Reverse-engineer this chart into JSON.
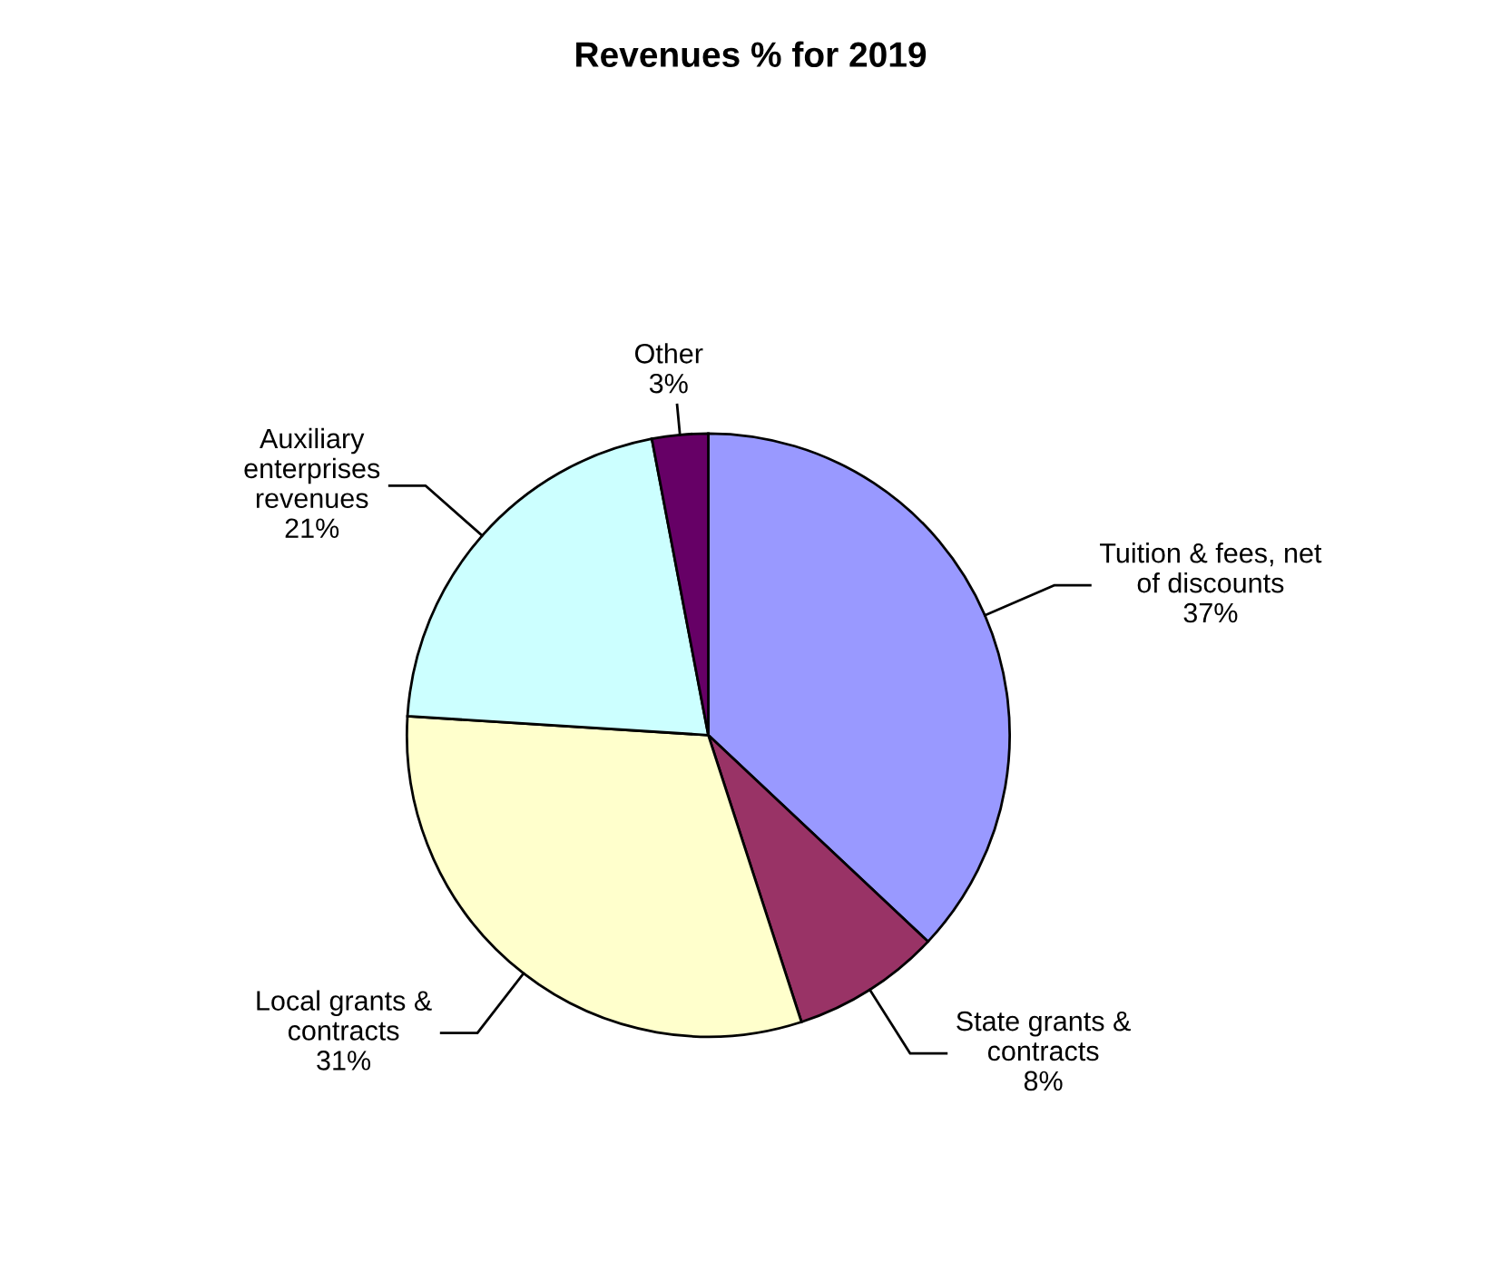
{
  "chart_data": {
    "type": "pie",
    "title": "Revenues % for 2019",
    "categories": [
      "Tuition & fees, net\nof discounts",
      "State grants &\ncontracts",
      "Local grants &\ncontracts",
      "Auxiliary\nenterprises\nrevenues",
      "Other"
    ],
    "values": [
      37,
      8,
      31,
      21,
      3
    ],
    "value_labels": [
      "37%",
      "8%",
      "31%",
      "21%",
      "3%"
    ],
    "colors": [
      "#9999ff",
      "#993366",
      "#ffffcc",
      "#ccffff",
      "#660066"
    ]
  }
}
